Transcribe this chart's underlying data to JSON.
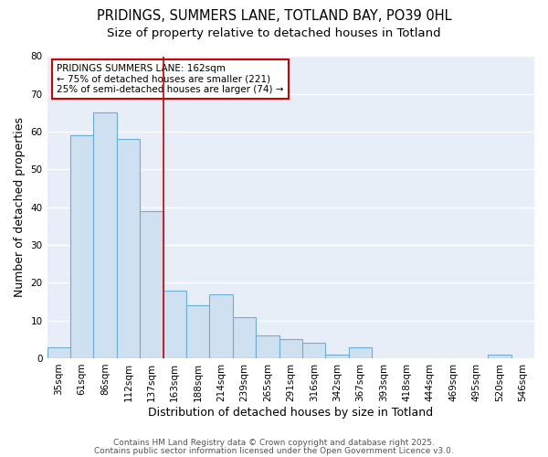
{
  "title_line1": "PRIDINGS, SUMMERS LANE, TOTLAND BAY, PO39 0HL",
  "title_line2": "Size of property relative to detached houses in Totland",
  "xlabel": "Distribution of detached houses by size in Totland",
  "ylabel": "Number of detached properties",
  "categories": [
    "35sqm",
    "61sqm",
    "86sqm",
    "112sqm",
    "137sqm",
    "163sqm",
    "188sqm",
    "214sqm",
    "239sqm",
    "265sqm",
    "291sqm",
    "316sqm",
    "342sqm",
    "367sqm",
    "393sqm",
    "418sqm",
    "444sqm",
    "469sqm",
    "495sqm",
    "520sqm",
    "546sqm"
  ],
  "values": [
    3,
    59,
    65,
    58,
    39,
    18,
    14,
    17,
    11,
    6,
    5,
    4,
    1,
    3,
    0,
    0,
    0,
    0,
    0,
    1,
    0
  ],
  "bar_color": "#cfe0f0",
  "bar_edge_color": "#6aaed6",
  "background_color": "#e8eef8",
  "grid_color": "#ffffff",
  "fig_background": "#ffffff",
  "annotation_box_facecolor": "#ffffff",
  "annotation_box_edge": "#cc0000",
  "annotation_line_color": "#cc0000",
  "annotation_text_line1": "PRIDINGS SUMMERS LANE: 162sqm",
  "annotation_text_line2": "← 75% of detached houses are smaller (221)",
  "annotation_text_line3": "25% of semi-detached houses are larger (74) →",
  "vline_bar_index": 5,
  "ylim": [
    0,
    80
  ],
  "yticks": [
    0,
    10,
    20,
    30,
    40,
    50,
    60,
    70,
    80
  ],
  "footer_line1": "Contains HM Land Registry data © Crown copyright and database right 2025.",
  "footer_line2": "Contains public sector information licensed under the Open Government Licence v3.0.",
  "title_fontsize": 10.5,
  "subtitle_fontsize": 9.5,
  "axis_label_fontsize": 9,
  "tick_fontsize": 7.5,
  "annotation_fontsize": 7.5,
  "footer_fontsize": 6.5
}
